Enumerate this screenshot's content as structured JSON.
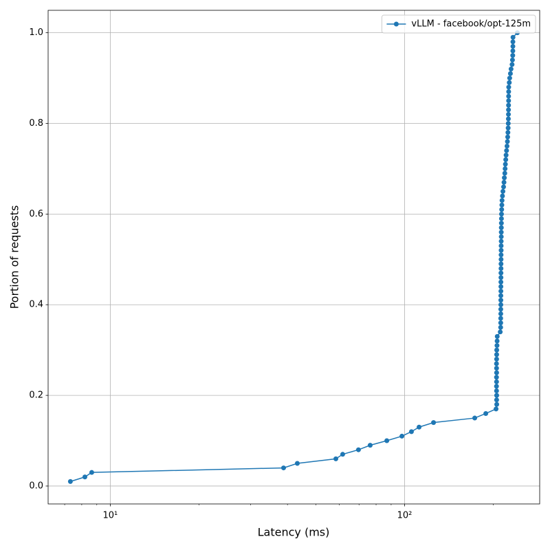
{
  "chart_data": {
    "type": "line",
    "xscale": "log",
    "grid": true,
    "legend_loc": "upper right",
    "marker": "o",
    "xlabel": "Latency (ms)",
    "ylabel": "Portion of requests",
    "xlim": [
      6.15,
      287.7
    ],
    "ylim": [
      -0.0395,
      1.0495
    ],
    "xticks": [
      {
        "value": 10,
        "label": "10¹"
      },
      {
        "value": 100,
        "label": "10²"
      }
    ],
    "xminorticks": [
      7,
      8,
      9,
      20,
      30,
      40,
      50,
      60,
      70,
      80,
      90,
      200
    ],
    "yticks": [
      {
        "value": 0,
        "label": "0.0"
      },
      0.2,
      0.4,
      0.6,
      0.8,
      {
        "value": 1,
        "label": "1.0"
      }
    ],
    "series": [
      {
        "name": "vLLM - facebook/opt-125m",
        "color": "#1f77b4",
        "x": [
          7.32,
          8.2,
          8.65,
          38.8,
          43.2,
          58.4,
          61.6,
          69.7,
          76.4,
          87.0,
          97.9,
          105.5,
          112.0,
          125.4,
          173.1,
          188.7,
          204.5,
          205.6,
          205.4,
          205.5,
          205.3,
          205.2,
          205.3,
          205.2,
          205.4,
          205.3,
          205.2,
          205.4,
          205.5,
          205.6,
          206.0,
          206.2,
          206.4,
          211.3,
          212.0,
          212.1,
          212.1,
          212.2,
          212.2,
          212.3,
          212.3,
          212.3,
          212.4,
          212.4,
          212.4,
          212.5,
          212.5,
          212.6,
          212.6,
          212.7,
          212.7,
          212.8,
          212.8,
          212.9,
          213.0,
          213.0,
          213.1,
          213.2,
          213.3,
          213.4,
          213.7,
          214.0,
          214.3,
          215.0,
          215.8,
          216.9,
          217.6,
          218.2,
          219.0,
          219.5,
          220.0,
          220.6,
          221.2,
          222.0,
          222.8,
          223.5,
          224.0,
          224.4,
          224.8,
          225.0,
          225.2,
          225.3,
          225.4,
          225.5,
          225.6,
          225.6,
          225.7,
          225.8,
          226.8,
          227.5,
          228.8,
          230.0,
          231.8,
          232.5,
          233.0,
          233.2,
          233.3,
          233.3,
          233.5,
          241.6
        ],
        "values": [
          0.01,
          0.02,
          0.03,
          0.04,
          0.05,
          0.06,
          0.07,
          0.08,
          0.09,
          0.1,
          0.11,
          0.12,
          0.13,
          0.14,
          0.15,
          0.16,
          0.17,
          0.18,
          0.19,
          0.2,
          0.21,
          0.22,
          0.23,
          0.24,
          0.25,
          0.26,
          0.27,
          0.28,
          0.29,
          0.3,
          0.31,
          0.32,
          0.33,
          0.34,
          0.35,
          0.36,
          0.37,
          0.38,
          0.39,
          0.4,
          0.41,
          0.42,
          0.43,
          0.44,
          0.45,
          0.46,
          0.47,
          0.48,
          0.49,
          0.5,
          0.51,
          0.52,
          0.53,
          0.54,
          0.55,
          0.56,
          0.57,
          0.58,
          0.59,
          0.6,
          0.61,
          0.62,
          0.63,
          0.64,
          0.65,
          0.66,
          0.67,
          0.68,
          0.69,
          0.7,
          0.71,
          0.72,
          0.73,
          0.74,
          0.75,
          0.76,
          0.77,
          0.78,
          0.79,
          0.8,
          0.81,
          0.82,
          0.83,
          0.84,
          0.85,
          0.86,
          0.87,
          0.88,
          0.89,
          0.9,
          0.91,
          0.92,
          0.93,
          0.94,
          0.95,
          0.96,
          0.97,
          0.98,
          0.99,
          1.0
        ]
      }
    ]
  }
}
